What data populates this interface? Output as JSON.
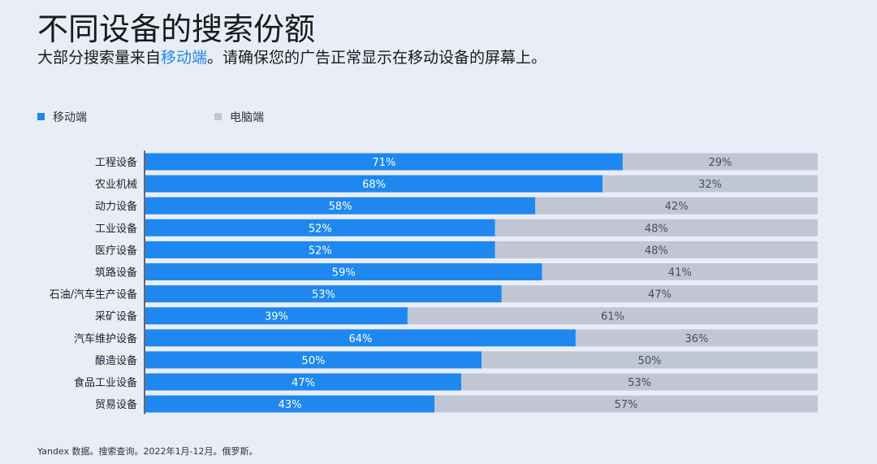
{
  "title": "不同设备的搜索份额",
  "subtitle": {
    "before": "大部分搜索量来自",
    "highlight": "移动端",
    "after": "。请确保您的广告正常显示在移动设备的屏幕上。"
  },
  "footer": "Yandex 数据。搜索查询。2022年1月-12月。俄罗斯。",
  "colors": {
    "mobile": "#1e88f0",
    "desktop": "#c1c6d4",
    "background": "#e9edf7",
    "axis": "#3a3a3a"
  },
  "chart_data": {
    "type": "bar",
    "orientation": "horizontal",
    "stacked": true,
    "percent_stacked": true,
    "xlim": [
      0,
      100
    ],
    "legend_position": "top-left",
    "categories": [
      "工程设备",
      "农业机械",
      "动力设备",
      "工业设备",
      "医疗设备",
      "筑路设备",
      "石油/汽车生产设备",
      "采矿设备",
      "汽车维护设备",
      "酿造设备",
      "食品工业设备",
      "贸易设备"
    ],
    "series": [
      {
        "name": "移动端",
        "values": [
          71,
          68,
          58,
          52,
          52,
          59,
          53,
          39,
          64,
          50,
          47,
          43
        ],
        "labels": [
          "71%",
          "68%",
          "58%",
          "52%",
          "52%",
          "59%",
          "53%",
          "39%",
          "64%",
          "50%",
          "47%",
          "43%"
        ]
      },
      {
        "name": "电脑端",
        "values": [
          29,
          32,
          42,
          48,
          48,
          41,
          47,
          61,
          36,
          50,
          53,
          57
        ],
        "labels": [
          "29%",
          "32%",
          "42%",
          "48%",
          "48%",
          "41%",
          "47%",
          "61%",
          "36%",
          "50%",
          "53%",
          "57%"
        ]
      }
    ]
  }
}
